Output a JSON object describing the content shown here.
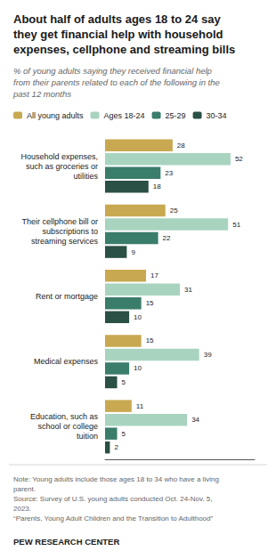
{
  "chart_data": {
    "type": "bar",
    "orientation": "horizontal",
    "title": "About half of adults ages 18 to 24 say\nthey get financial help with household\nexpenses, cellphone and streaming bills",
    "subtitle": "% of young adults saying they received financial help\nfrom their parents related to each of the following in the\npast 12 months",
    "annotations": [
      "Note: Young adults include those ages 18 to 34 who have a living\nparent.\nSource: Survey of U.S. young adults conducted Oct. 24-Nov. 5,\n2023.\n“Parents, Young Adult Children and the Transition to Adulthood”",
      "PEW RESEARCH CENTER"
    ],
    "categories": [
      "Household expenses,\nsuch as groceries or\nutilities",
      "Their cellphone bill or\nsubscriptions to\nstreaming services",
      "Rent or mortgage",
      "Medical expenses",
      "Education, such as\nschool or college\ntuition"
    ],
    "series": [
      {
        "name": "All young adults",
        "color": "#C8A951",
        "values": [
          28,
          25,
          17,
          15,
          11
        ]
      },
      {
        "name": "Ages 18-24",
        "color": "#A8D4BF",
        "values": [
          52,
          51,
          31,
          39,
          34
        ]
      },
      {
        "name": "25-29",
        "color": "#3A7D6B",
        "values": [
          23,
          22,
          15,
          10,
          5
        ]
      },
      {
        "name": "30-34",
        "color": "#2B5045",
        "values": [
          18,
          9,
          10,
          5,
          2
        ]
      }
    ],
    "xlim": [
      0,
      62
    ],
    "data_labels": true,
    "grid": false,
    "legend": "top",
    "tick_labels": "y"
  }
}
